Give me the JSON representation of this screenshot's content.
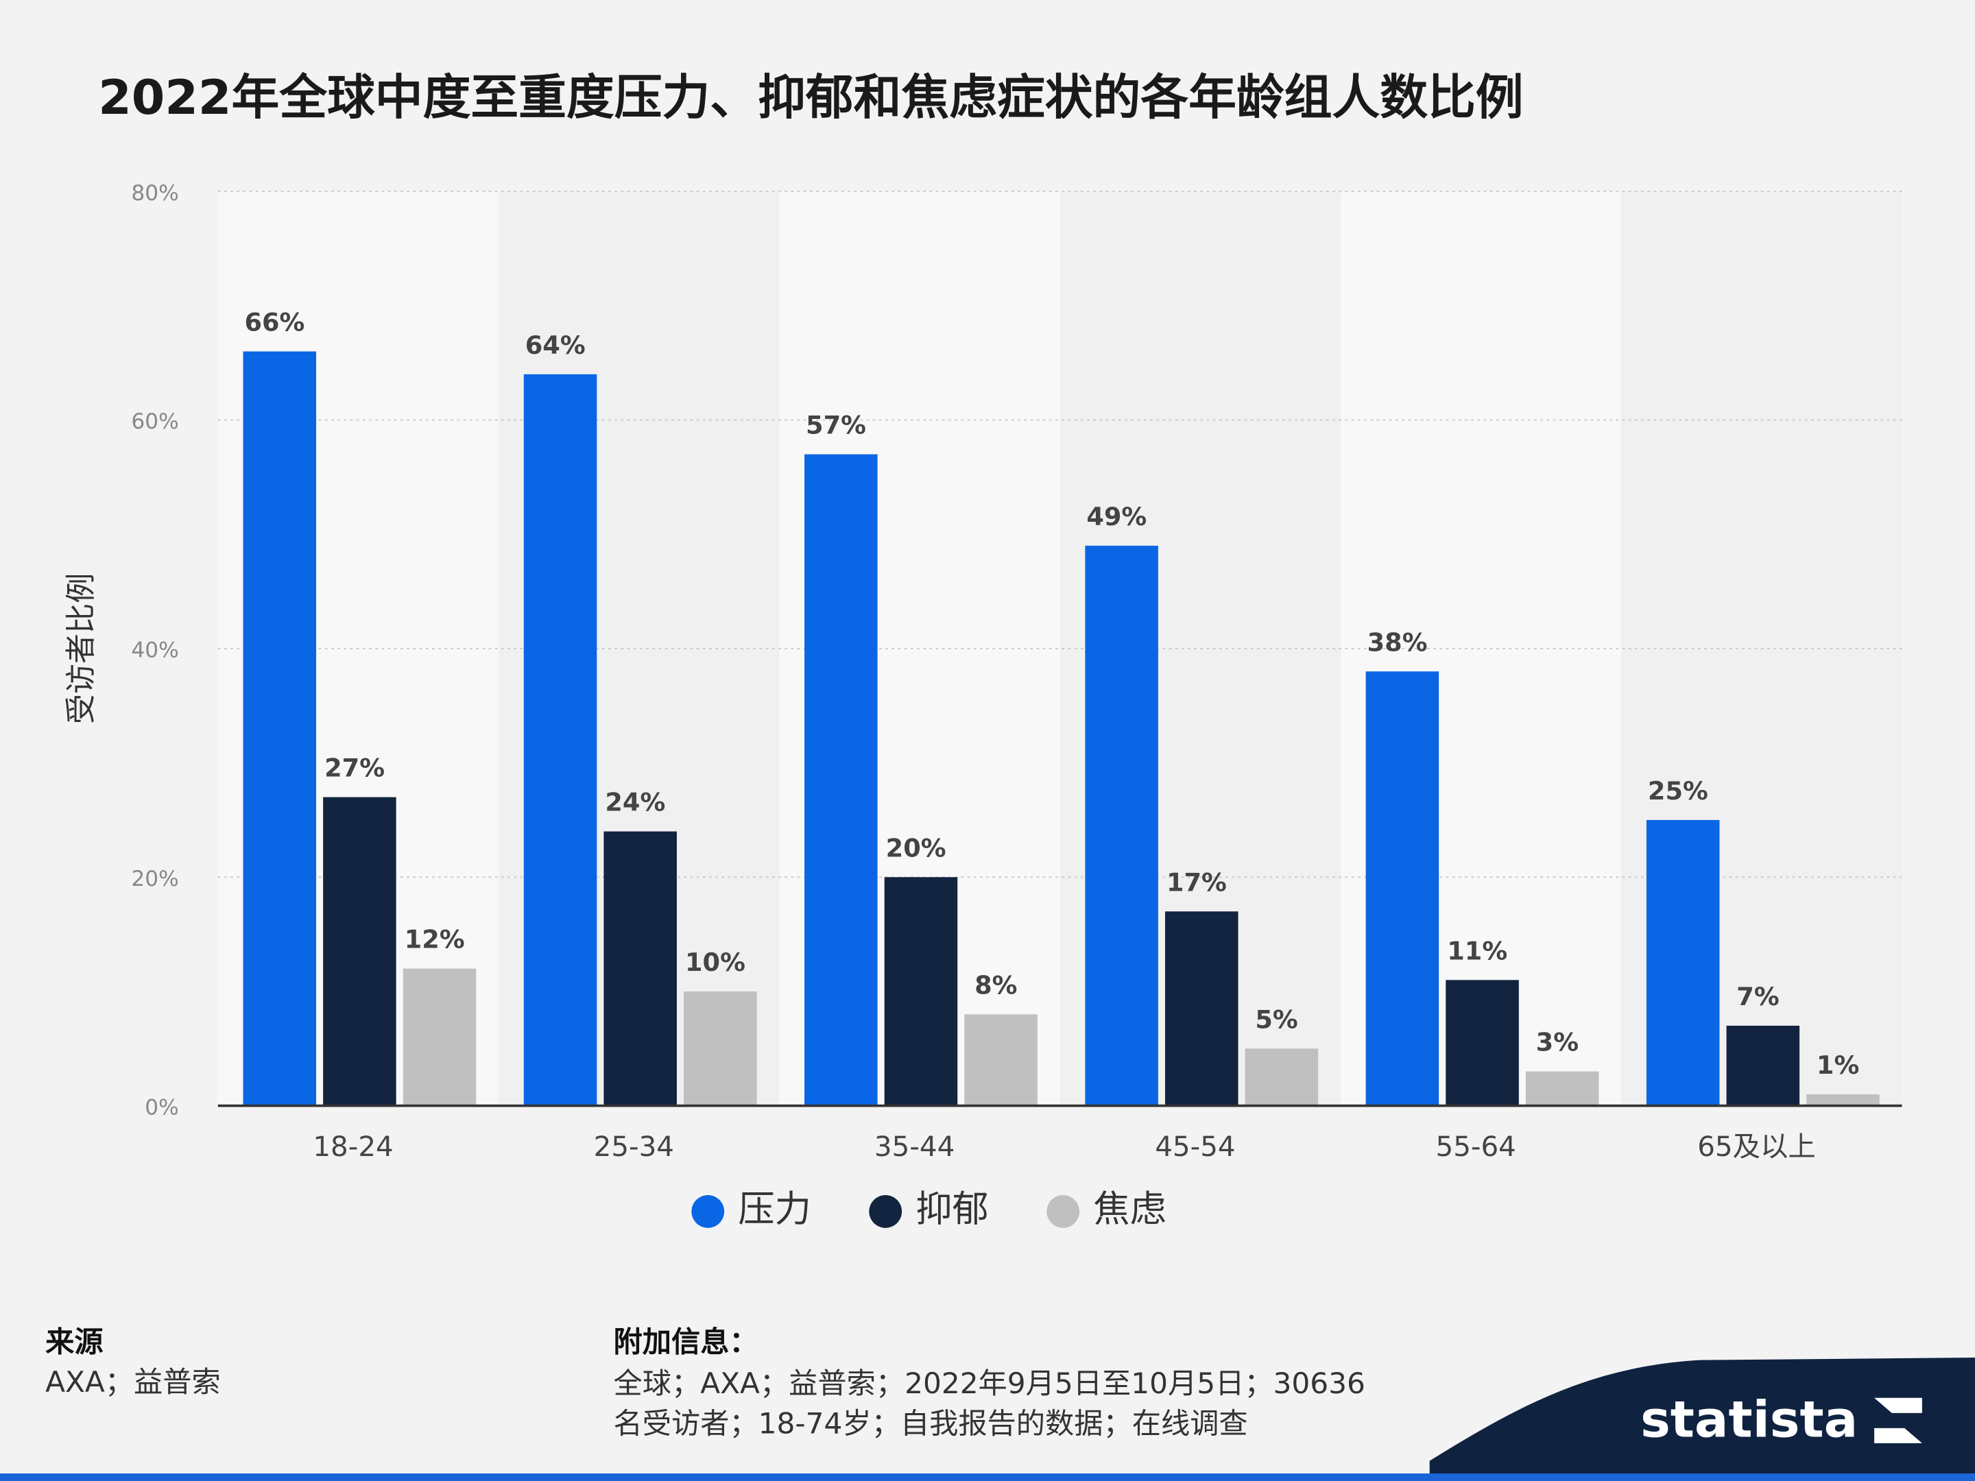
{
  "chart_data": {
    "type": "bar",
    "title": "2022年全球中度至重度压力、抑郁和焦虑症状的各年龄组人数比例",
    "y_label": "受访者比例",
    "categories": [
      "18-24",
      "25-34",
      "35-44",
      "45-54",
      "55-64",
      "65及以上"
    ],
    "series": [
      {
        "name": "压力",
        "color": "#0a66e4",
        "values": [
          66,
          64,
          57,
          49,
          38,
          25
        ],
        "value_labels": [
          "66%",
          "64%",
          "57%",
          "49%",
          "38%",
          "25%"
        ]
      },
      {
        "name": "抑郁",
        "color": "#12243f",
        "values": [
          27,
          24,
          20,
          17,
          11,
          7
        ],
        "value_labels": [
          "27%",
          "24%",
          "20%",
          "17%",
          "11%",
          "7%"
        ]
      },
      {
        "name": "焦虑",
        "color": "#c0c0c0",
        "values": [
          12,
          10,
          8,
          5,
          3,
          1
        ],
        "value_labels": [
          "12%",
          "10%",
          "8%",
          "5%",
          "3%",
          "1%"
        ]
      }
    ],
    "ylim": [
      0,
      80
    ],
    "yticks": [
      {
        "value": 0,
        "label": "0%"
      },
      {
        "value": 20,
        "label": "20%"
      },
      {
        "value": 40,
        "label": "40%"
      },
      {
        "value": 60,
        "label": "60%"
      },
      {
        "value": 80,
        "label": "80%"
      }
    ],
    "grid": true
  },
  "footer": {
    "source_title": "来源",
    "source": "AXA；益普索",
    "info_title": "附加信息：",
    "info_lines": [
      "全球；AXA；益普索；2022年9月5日至10月5日；30636",
      "名受访者；18-74岁；自我报告的数据；在线调查"
    ],
    "brand": "statista"
  }
}
